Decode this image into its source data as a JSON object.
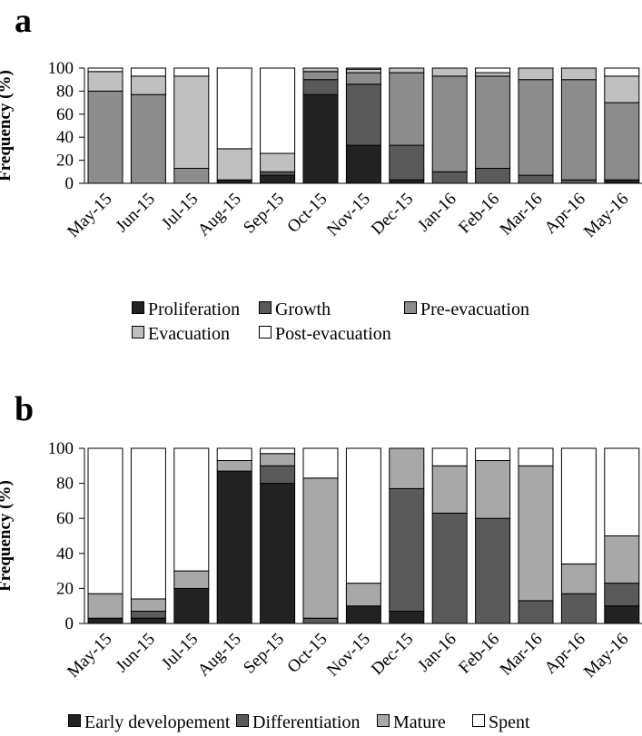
{
  "chart_data": [
    {
      "panel": "a",
      "type": "bar",
      "stacked": true,
      "ylabel": "Frequency (%)",
      "ylim": [
        0,
        100
      ],
      "yticks": [
        "0",
        "20",
        "40",
        "60",
        "80",
        "100"
      ],
      "categories": [
        "May-15",
        "Jun-15",
        "Jul-15",
        "Aug-15",
        "Sep-15",
        "Oct-15",
        "Nov-15",
        "Dec-15",
        "Jan-16",
        "Feb-16",
        "Mar-16",
        "Apr-16",
        "May-16"
      ],
      "series": [
        {
          "name": "Proliferation",
          "color": "#222222",
          "values": [
            0,
            0,
            0,
            3,
            7,
            77,
            33,
            3,
            0,
            0,
            0,
            0,
            3
          ]
        },
        {
          "name": "Growth",
          "color": "#5a5a5a",
          "values": [
            0,
            0,
            0,
            0,
            3,
            13,
            53,
            30,
            10,
            13,
            7,
            3,
            0
          ]
        },
        {
          "name": "Pre-evacuation",
          "color": "#8c8c8c",
          "values": [
            80,
            77,
            13,
            0,
            0,
            7,
            10,
            63,
            83,
            80,
            83,
            87,
            67
          ]
        },
        {
          "name": "Evacuation",
          "color": "#c0c0c0",
          "values": [
            17,
            16,
            80,
            27,
            16,
            3,
            3,
            4,
            7,
            3,
            10,
            10,
            23
          ]
        },
        {
          "name": "Post-evacuation",
          "color": "#ffffff",
          "values": [
            3,
            7,
            7,
            70,
            74,
            0,
            1,
            0,
            0,
            4,
            0,
            0,
            7
          ]
        }
      ],
      "legend_position": "bottom"
    },
    {
      "panel": "b",
      "type": "bar",
      "stacked": true,
      "ylabel": "Frequency (%)",
      "ylim": [
        0,
        100
      ],
      "yticks": [
        "0",
        "20",
        "40",
        "60",
        "80",
        "100"
      ],
      "categories": [
        "May-15",
        "Jun-15",
        "Jul-15",
        "Aug-15",
        "Sep-15",
        "Oct-15",
        "Nov-15",
        "Dec-15",
        "Jan-16",
        "Feb-16",
        "Mar-16",
        "Apr-16",
        "May-16"
      ],
      "series": [
        {
          "name": "Early developement",
          "color": "#222222",
          "values": [
            3,
            3,
            20,
            87,
            80,
            0,
            10,
            7,
            0,
            0,
            0,
            0,
            10
          ]
        },
        {
          "name": "Differentiation",
          "color": "#5a5a5a",
          "values": [
            0,
            4,
            0,
            0,
            10,
            3,
            0,
            70,
            63,
            60,
            13,
            17,
            13
          ]
        },
        {
          "name": "Mature",
          "color": "#a8a8a8",
          "values": [
            14,
            7,
            10,
            6,
            7,
            80,
            13,
            23,
            27,
            33,
            77,
            17,
            27
          ]
        },
        {
          "name": "Spent",
          "color": "#ffffff",
          "values": [
            83,
            86,
            70,
            7,
            3,
            17,
            77,
            0,
            10,
            7,
            10,
            66,
            50
          ]
        }
      ],
      "legend_position": "bottom"
    }
  ],
  "panels": {
    "a": "a",
    "b": "b"
  }
}
